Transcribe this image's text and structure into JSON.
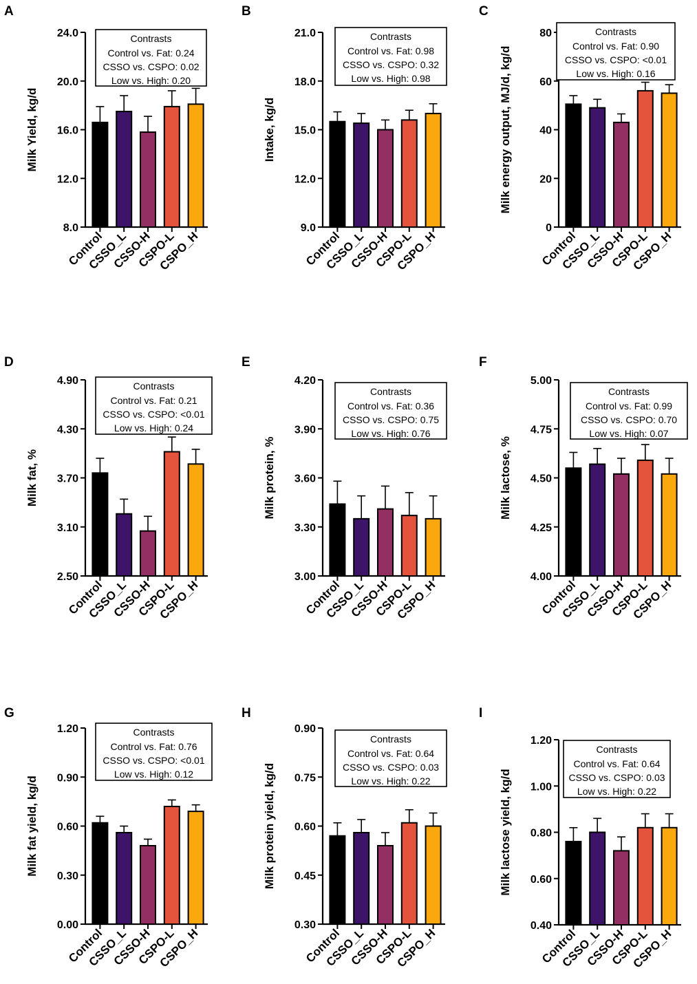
{
  "colors": {
    "Control": "#000000",
    "CSSO_L": "#3e1468",
    "CSSO-H": "#932f62",
    "CSPO-L": "#e4543c",
    "CSPO_H": "#fba80f"
  },
  "chart_data": [
    {
      "letter": "A",
      "type": "bar",
      "ylabel": "Milk Yield, kg/d",
      "ylim": [
        8.0,
        24.0
      ],
      "yticks": [
        "8.0",
        "12.0",
        "16.0",
        "20.0",
        "24.0"
      ],
      "categories": [
        "Control",
        "CSSO_L",
        "CSSO-H",
        "CSPO-L",
        "CSPO_H"
      ],
      "values": [
        16.6,
        17.5,
        15.8,
        17.9,
        18.1
      ],
      "errors": [
        1.3,
        1.3,
        1.3,
        1.3,
        1.3
      ],
      "contrasts": {
        "title": "Contrasts",
        "lines": [
          "Control vs. Fat: 0.24",
          "CSSO vs. CSPO: 0.02",
          "Low vs. High: 0.20"
        ]
      }
    },
    {
      "letter": "B",
      "type": "bar",
      "ylabel": "Intake, kg/d",
      "ylim": [
        9.0,
        21.0
      ],
      "yticks": [
        "9.0",
        "12.0",
        "15.0",
        "18.0",
        "21.0"
      ],
      "categories": [
        "Control",
        "CSSO_L",
        "CSSO-H",
        "CSPO-L",
        "CSPO_H"
      ],
      "values": [
        15.5,
        15.4,
        15.0,
        15.6,
        16.0
      ],
      "errors": [
        0.6,
        0.6,
        0.6,
        0.6,
        0.6
      ],
      "contrasts": {
        "title": "Contrasts",
        "lines": [
          "Control vs. Fat: 0.98",
          "CSSO vs. CSPO: 0.32",
          "Low vs. High: 0.98"
        ]
      }
    },
    {
      "letter": "C",
      "type": "bar",
      "ylabel": "Milk energy output, MJ/d, kg/d",
      "ylim": [
        0,
        80
      ],
      "yticks": [
        "0",
        "20",
        "40",
        "60",
        "80"
      ],
      "categories": [
        "Control",
        "CSSO_L",
        "CSSO-H",
        "CSPO-L",
        "CSPO_H"
      ],
      "values": [
        50.5,
        49.0,
        43.0,
        56.0,
        55.0
      ],
      "errors": [
        3.5,
        3.5,
        3.5,
        3.5,
        3.5
      ],
      "contrasts": {
        "title": "Contrasts",
        "lines": [
          "Control vs. Fat: 0.90",
          "CSSO vs. CSPO: <0.01",
          "Low vs. High: 0.16"
        ]
      }
    },
    {
      "letter": "D",
      "type": "bar",
      "ylabel": "Milk fat, %",
      "ylim": [
        2.5,
        4.9
      ],
      "yticks": [
        "2.50",
        "3.10",
        "3.70",
        "4.30",
        "4.90"
      ],
      "categories": [
        "Control",
        "CSSO_L",
        "CSSO-H",
        "CSPO-L",
        "CSPO_H"
      ],
      "values": [
        3.76,
        3.26,
        3.05,
        4.02,
        3.87
      ],
      "errors": [
        0.18,
        0.18,
        0.18,
        0.18,
        0.18
      ],
      "contrasts": {
        "title": "Contrasts",
        "lines": [
          "Control vs. Fat: 0.21",
          "CSSO vs. CSPO: <0.01",
          "Low vs. High: 0.24"
        ]
      }
    },
    {
      "letter": "E",
      "type": "bar",
      "ylabel": "Milk protein, %",
      "ylim": [
        3.0,
        4.2
      ],
      "yticks": [
        "3.00",
        "3.30",
        "3.60",
        "3.90",
        "4.20"
      ],
      "categories": [
        "Control",
        "CSSO_L",
        "CSSO-H",
        "CSPO-L",
        "CSPO_H"
      ],
      "values": [
        3.44,
        3.35,
        3.41,
        3.37,
        3.35
      ],
      "errors": [
        0.14,
        0.14,
        0.14,
        0.14,
        0.14
      ],
      "contrasts": {
        "title": "Contrasts",
        "lines": [
          "Control vs. Fat: 0.36",
          "CSSO vs. CSPO: 0.75",
          "Low vs. High: 0.76"
        ]
      }
    },
    {
      "letter": "F",
      "type": "bar",
      "ylabel": "Milk lactose, %",
      "ylim": [
        4.0,
        5.0
      ],
      "yticks": [
        "4.00",
        "4.25",
        "4.50",
        "4.75",
        "5.00"
      ],
      "categories": [
        "Control",
        "CSSO_L",
        "CSSO-H",
        "CSPO-L",
        "CSPO_H"
      ],
      "values": [
        4.55,
        4.57,
        4.52,
        4.59,
        4.52
      ],
      "errors": [
        0.08,
        0.08,
        0.08,
        0.08,
        0.08
      ],
      "contrasts": {
        "title": "Contrasts",
        "lines": [
          "Control vs. Fat: 0.99",
          "CSSO vs. CSPO: 0.70",
          "Low vs. High: 0.07"
        ]
      }
    },
    {
      "letter": "G",
      "type": "bar",
      "ylabel": "Milk fat yield, kg/d",
      "ylim": [
        0,
        1.2
      ],
      "yticks": [
        "0.00",
        "0.30",
        "0.60",
        "0.90",
        "1.20"
      ],
      "categories": [
        "Control",
        "CSSO_L",
        "CSSO-H",
        "CSPO-L",
        "CSPO_H"
      ],
      "values": [
        0.62,
        0.56,
        0.48,
        0.72,
        0.69
      ],
      "errors": [
        0.04,
        0.04,
        0.04,
        0.04,
        0.04
      ],
      "contrasts": {
        "title": "Contrasts",
        "lines": [
          "Control vs. Fat: 0.76",
          "CSSO vs. CSPO: <0.01",
          "Low vs. High: 0.12"
        ]
      }
    },
    {
      "letter": "H",
      "type": "bar",
      "ylabel": "Milk protein yield, kg/d",
      "ylim": [
        0.3,
        0.9
      ],
      "yticks": [
        "0.30",
        "0.45",
        "0.60",
        "0.75",
        "0.90"
      ],
      "categories": [
        "Control",
        "CSSO_L",
        "CSSO-H",
        "CSPO-L",
        "CSPO_H"
      ],
      "values": [
        0.57,
        0.58,
        0.54,
        0.61,
        0.6
      ],
      "errors": [
        0.04,
        0.04,
        0.04,
        0.04,
        0.04
      ],
      "contrasts": {
        "title": "Contrasts",
        "lines": [
          "Control vs. Fat: 0.64",
          "CSSO vs. CSPO: 0.03",
          "Low vs. High: 0.22"
        ]
      }
    },
    {
      "letter": "I",
      "type": "bar",
      "ylabel": "Milk lactose yield, kg/d",
      "ylim": [
        0.4,
        1.2
      ],
      "yticks": [
        "0.40",
        "0.60",
        "0.80",
        "1.00",
        "1.20"
      ],
      "categories": [
        "Control",
        "CSSO_L",
        "CSSO-H",
        "CSPO-L",
        "CSPO_H"
      ],
      "values": [
        0.76,
        0.8,
        0.72,
        0.82,
        0.82
      ],
      "errors": [
        0.06,
        0.06,
        0.06,
        0.06,
        0.06
      ],
      "contrasts": {
        "title": "Contrasts",
        "lines": [
          "Control vs. Fat: 0.64",
          "CSSO vs. CSPO: 0.03",
          "Low vs. High: 0.22"
        ]
      }
    }
  ]
}
